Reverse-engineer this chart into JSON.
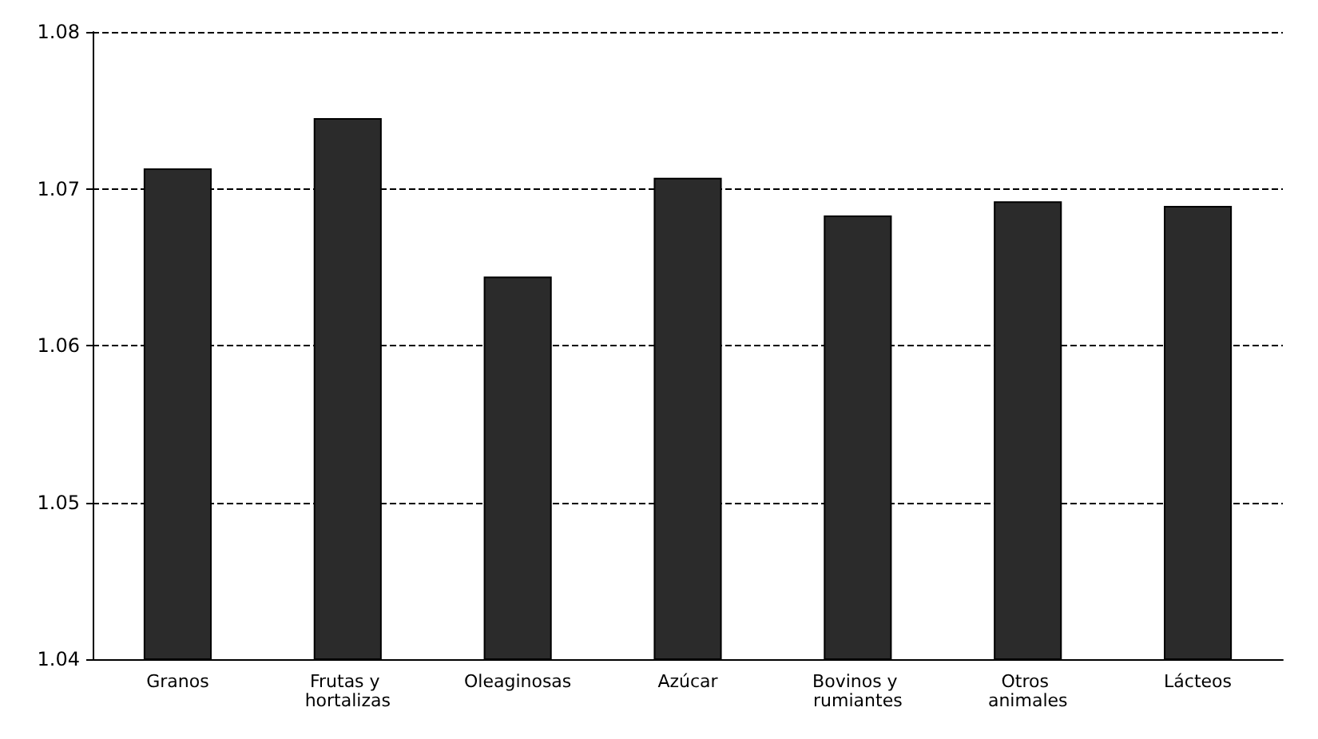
{
  "chart_data": {
    "type": "bar",
    "categories": [
      "Granos",
      "Frutas y hortalizas",
      "Oleaginosas",
      "Azúcar",
      "Bovinos y rumiantes",
      "Otros animales",
      "Lácteos"
    ],
    "values": [
      1.0713,
      1.0745,
      1.0644,
      1.0707,
      1.0683,
      1.0692,
      1.0689
    ],
    "color": "#2b2b2b",
    "ylim": [
      1.04,
      1.08
    ],
    "yticks": [
      1.04,
      1.05,
      1.06,
      1.07,
      1.08
    ],
    "grid": "y"
  }
}
